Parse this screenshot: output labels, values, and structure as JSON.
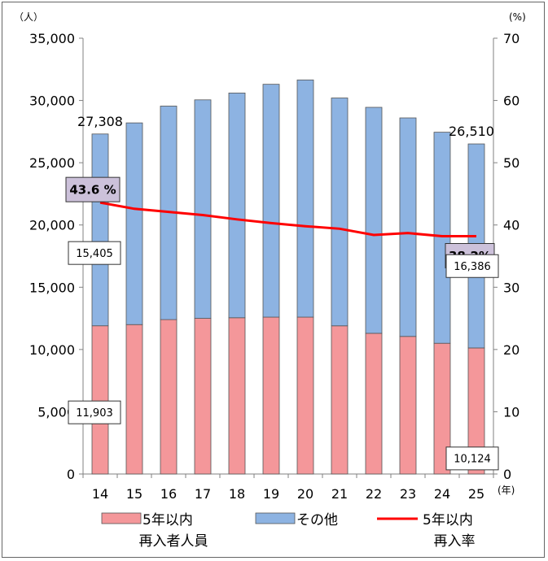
{
  "chart_data": {
    "type": "bar",
    "stacked": true,
    "categories": [
      "14",
      "15",
      "16",
      "17",
      "18",
      "19",
      "20",
      "21",
      "22",
      "23",
      "24",
      "25"
    ],
    "x_unit": "(年)",
    "y_left_unit": "（人）",
    "y_right_unit": "(%)",
    "ylim_left": [
      0,
      35000
    ],
    "ylim_right": [
      0,
      70
    ],
    "y_left_ticks": [
      "0",
      "5,000",
      "10,000",
      "15,000",
      "20,000",
      "25,000",
      "30,000",
      "35,000"
    ],
    "y_right_ticks": [
      "0",
      "10",
      "20",
      "30",
      "40",
      "50",
      "60",
      "70"
    ],
    "grid": false,
    "series": [
      {
        "name": "5年以内",
        "kind": "bar",
        "color": "#f4979a",
        "values": [
          11903,
          12000,
          12400,
          12500,
          12550,
          12600,
          12600,
          11900,
          11300,
          11050,
          10500,
          10124
        ]
      },
      {
        "name": "その他",
        "kind": "bar",
        "color": "#8db3e2",
        "values": [
          15405,
          16200,
          17150,
          17550,
          18050,
          18700,
          19050,
          18300,
          18150,
          17550,
          16950,
          16386
        ]
      },
      {
        "name": "5年以内",
        "kind": "line",
        "axis": "right",
        "color": "#ff0000",
        "values": [
          43.6,
          42.6,
          42.1,
          41.6,
          40.9,
          40.3,
          39.8,
          39.4,
          38.4,
          38.7,
          38.2,
          38.2
        ]
      }
    ],
    "legend": {
      "position": "bottom",
      "items": [
        "5年以内",
        "その他",
        "5年以内"
      ],
      "group_labels": [
        "再入者人員",
        "再入率"
      ]
    },
    "annotations": {
      "total_first": "27,308",
      "total_last": "26,510",
      "rate_first": "43.6 %",
      "rate_last": "38.2%",
      "upper_first": "15,405",
      "upper_last": "16,386",
      "lower_first": "11,903",
      "lower_last": "10,124"
    }
  }
}
